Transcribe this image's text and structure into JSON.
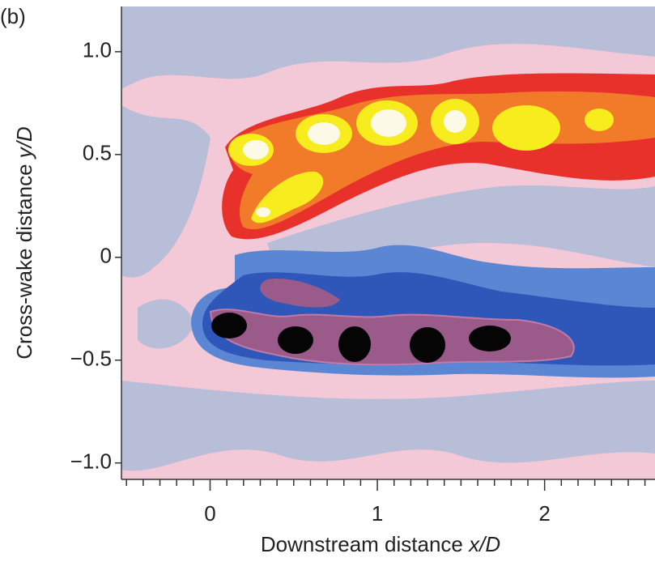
{
  "chart_data": {
    "type": "contour",
    "panel_label": "(b)",
    "xlabel": {
      "text": "Downstream distance",
      "var": "x/D"
    },
    "ylabel": {
      "text": "Cross-wake distance",
      "var": "y/D"
    },
    "xlim": [
      -0.53,
      2.66
    ],
    "ylim": [
      -1.08,
      1.22
    ],
    "xticks": [
      0,
      1,
      2
    ],
    "xminorticks": [
      -0.5,
      -0.4,
      -0.3,
      -0.2,
      -0.1,
      0.1,
      0.2,
      0.3,
      0.4,
      0.5,
      0.6,
      0.7,
      0.8,
      0.9,
      1.1,
      1.2,
      1.3,
      1.4,
      1.5,
      1.6,
      1.7,
      1.8,
      1.9,
      2.1,
      2.2,
      2.3,
      2.4,
      2.5,
      2.6
    ],
    "yticks": [
      {
        "value": -1,
        "label": "−1.0"
      },
      {
        "value": -0.5,
        "label": "−0.5"
      },
      0,
      0.5,
      {
        "value": 1,
        "label": "1.0"
      }
    ]
  }
}
